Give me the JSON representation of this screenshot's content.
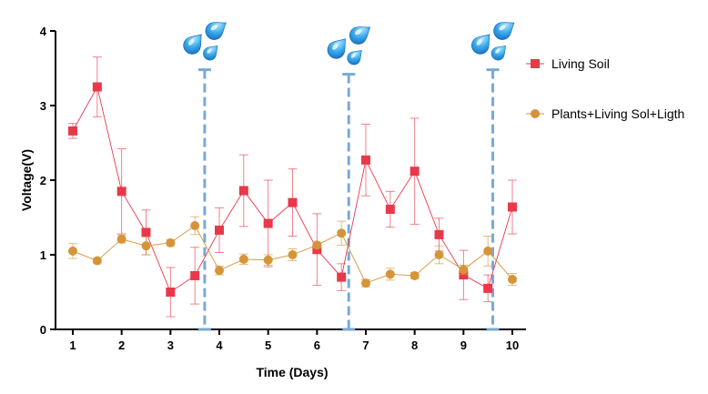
{
  "chart_data": {
    "type": "line",
    "title": "",
    "xlabel": "Time  (Days)",
    "ylabel": "Voltage(V)",
    "xlim": [
      0.8,
      10.3
    ],
    "ylim": [
      0,
      4
    ],
    "xticks": [
      1,
      2,
      3,
      4,
      5,
      6,
      7,
      8,
      9,
      10
    ],
    "yticks": [
      0,
      1,
      2,
      3,
      4
    ],
    "grid": false,
    "legend_position": "right",
    "series": [
      {
        "name": "Living Soil",
        "color": "#e8394a",
        "marker": "square",
        "x": [
          1,
          1.5,
          2,
          2.5,
          3,
          3.5,
          4,
          4.5,
          5,
          5.5,
          6,
          6.5,
          7,
          7.5,
          8,
          8.5,
          9,
          9.5,
          10
        ],
        "y": [
          2.66,
          3.25,
          1.85,
          1.3,
          0.5,
          0.72,
          1.33,
          1.86,
          1.42,
          1.7,
          1.07,
          0.7,
          2.27,
          1.61,
          2.12,
          1.27,
          0.73,
          0.55,
          1.64
        ],
        "err": [
          0.1,
          0.4,
          0.57,
          0.3,
          0.33,
          0.38,
          0.3,
          0.48,
          0.58,
          0.45,
          0.48,
          0.18,
          0.48,
          0.24,
          0.71,
          0.22,
          0.33,
          0.18,
          0.36
        ]
      },
      {
        "name": "Plants+Living Sol+Ligth",
        "color": "#d4953a",
        "marker": "circle",
        "x": [
          1,
          1.5,
          2,
          2.5,
          3,
          3.5,
          4,
          4.5,
          5,
          5.5,
          6,
          6.5,
          7,
          7.5,
          8,
          8.5,
          9,
          9.5,
          10
        ],
        "y": [
          1.05,
          0.92,
          1.21,
          1.12,
          1.16,
          1.39,
          0.79,
          0.94,
          0.93,
          1.0,
          1.13,
          1.29,
          0.62,
          0.74,
          0.72,
          1.0,
          0.8,
          1.05,
          0.67
        ],
        "err": [
          0.1,
          0.03,
          0.05,
          0.12,
          0.04,
          0.12,
          0.06,
          0.07,
          0.07,
          0.08,
          0.04,
          0.16,
          0.05,
          0.08,
          0.04,
          0.12,
          0.06,
          0.2,
          0.08
        ]
      }
    ],
    "watering_events": [
      {
        "x": 3.7,
        "y_top": 3.48,
        "icon": "water-drops-icon"
      },
      {
        "x": 6.65,
        "y_top": 3.42,
        "icon": "water-drops-icon"
      },
      {
        "x": 9.6,
        "y_top": 3.48,
        "icon": "water-drops-icon"
      }
    ],
    "watering_line_color": "#7aa9d6"
  }
}
